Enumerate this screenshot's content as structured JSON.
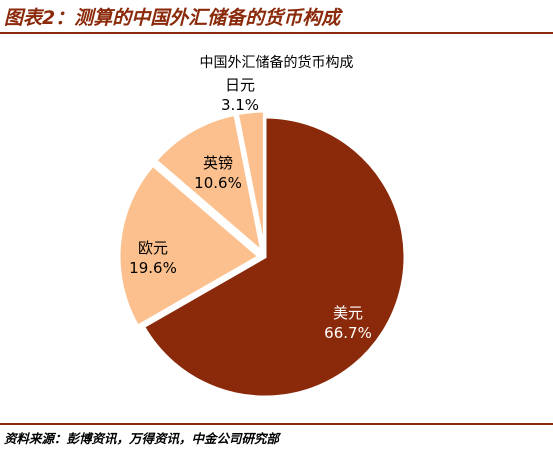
{
  "header": {
    "title": "图表2：测算的中国外汇储备的货币构成"
  },
  "footer": {
    "source": "资料来源：彭博资讯，万得资讯，中金公司研究部"
  },
  "colors": {
    "accent": "#8B2A0A",
    "slice_dark": "#8B2A0A",
    "slice_light": "#FBC08E"
  },
  "chart_data": {
    "type": "pie",
    "title": "中国外汇储备的货币构成",
    "slices": [
      {
        "name": "美元",
        "value": 66.7,
        "label": "66.7%",
        "color": "#8B2A0A"
      },
      {
        "name": "欧元",
        "value": 19.6,
        "label": "19.6%",
        "color": "#FBC08E"
      },
      {
        "name": "英镑",
        "value": 10.6,
        "label": "10.6%",
        "color": "#FBC08E"
      },
      {
        "name": "日元",
        "value": 3.1,
        "label": "3.1%",
        "color": "#FBC08E"
      }
    ]
  }
}
